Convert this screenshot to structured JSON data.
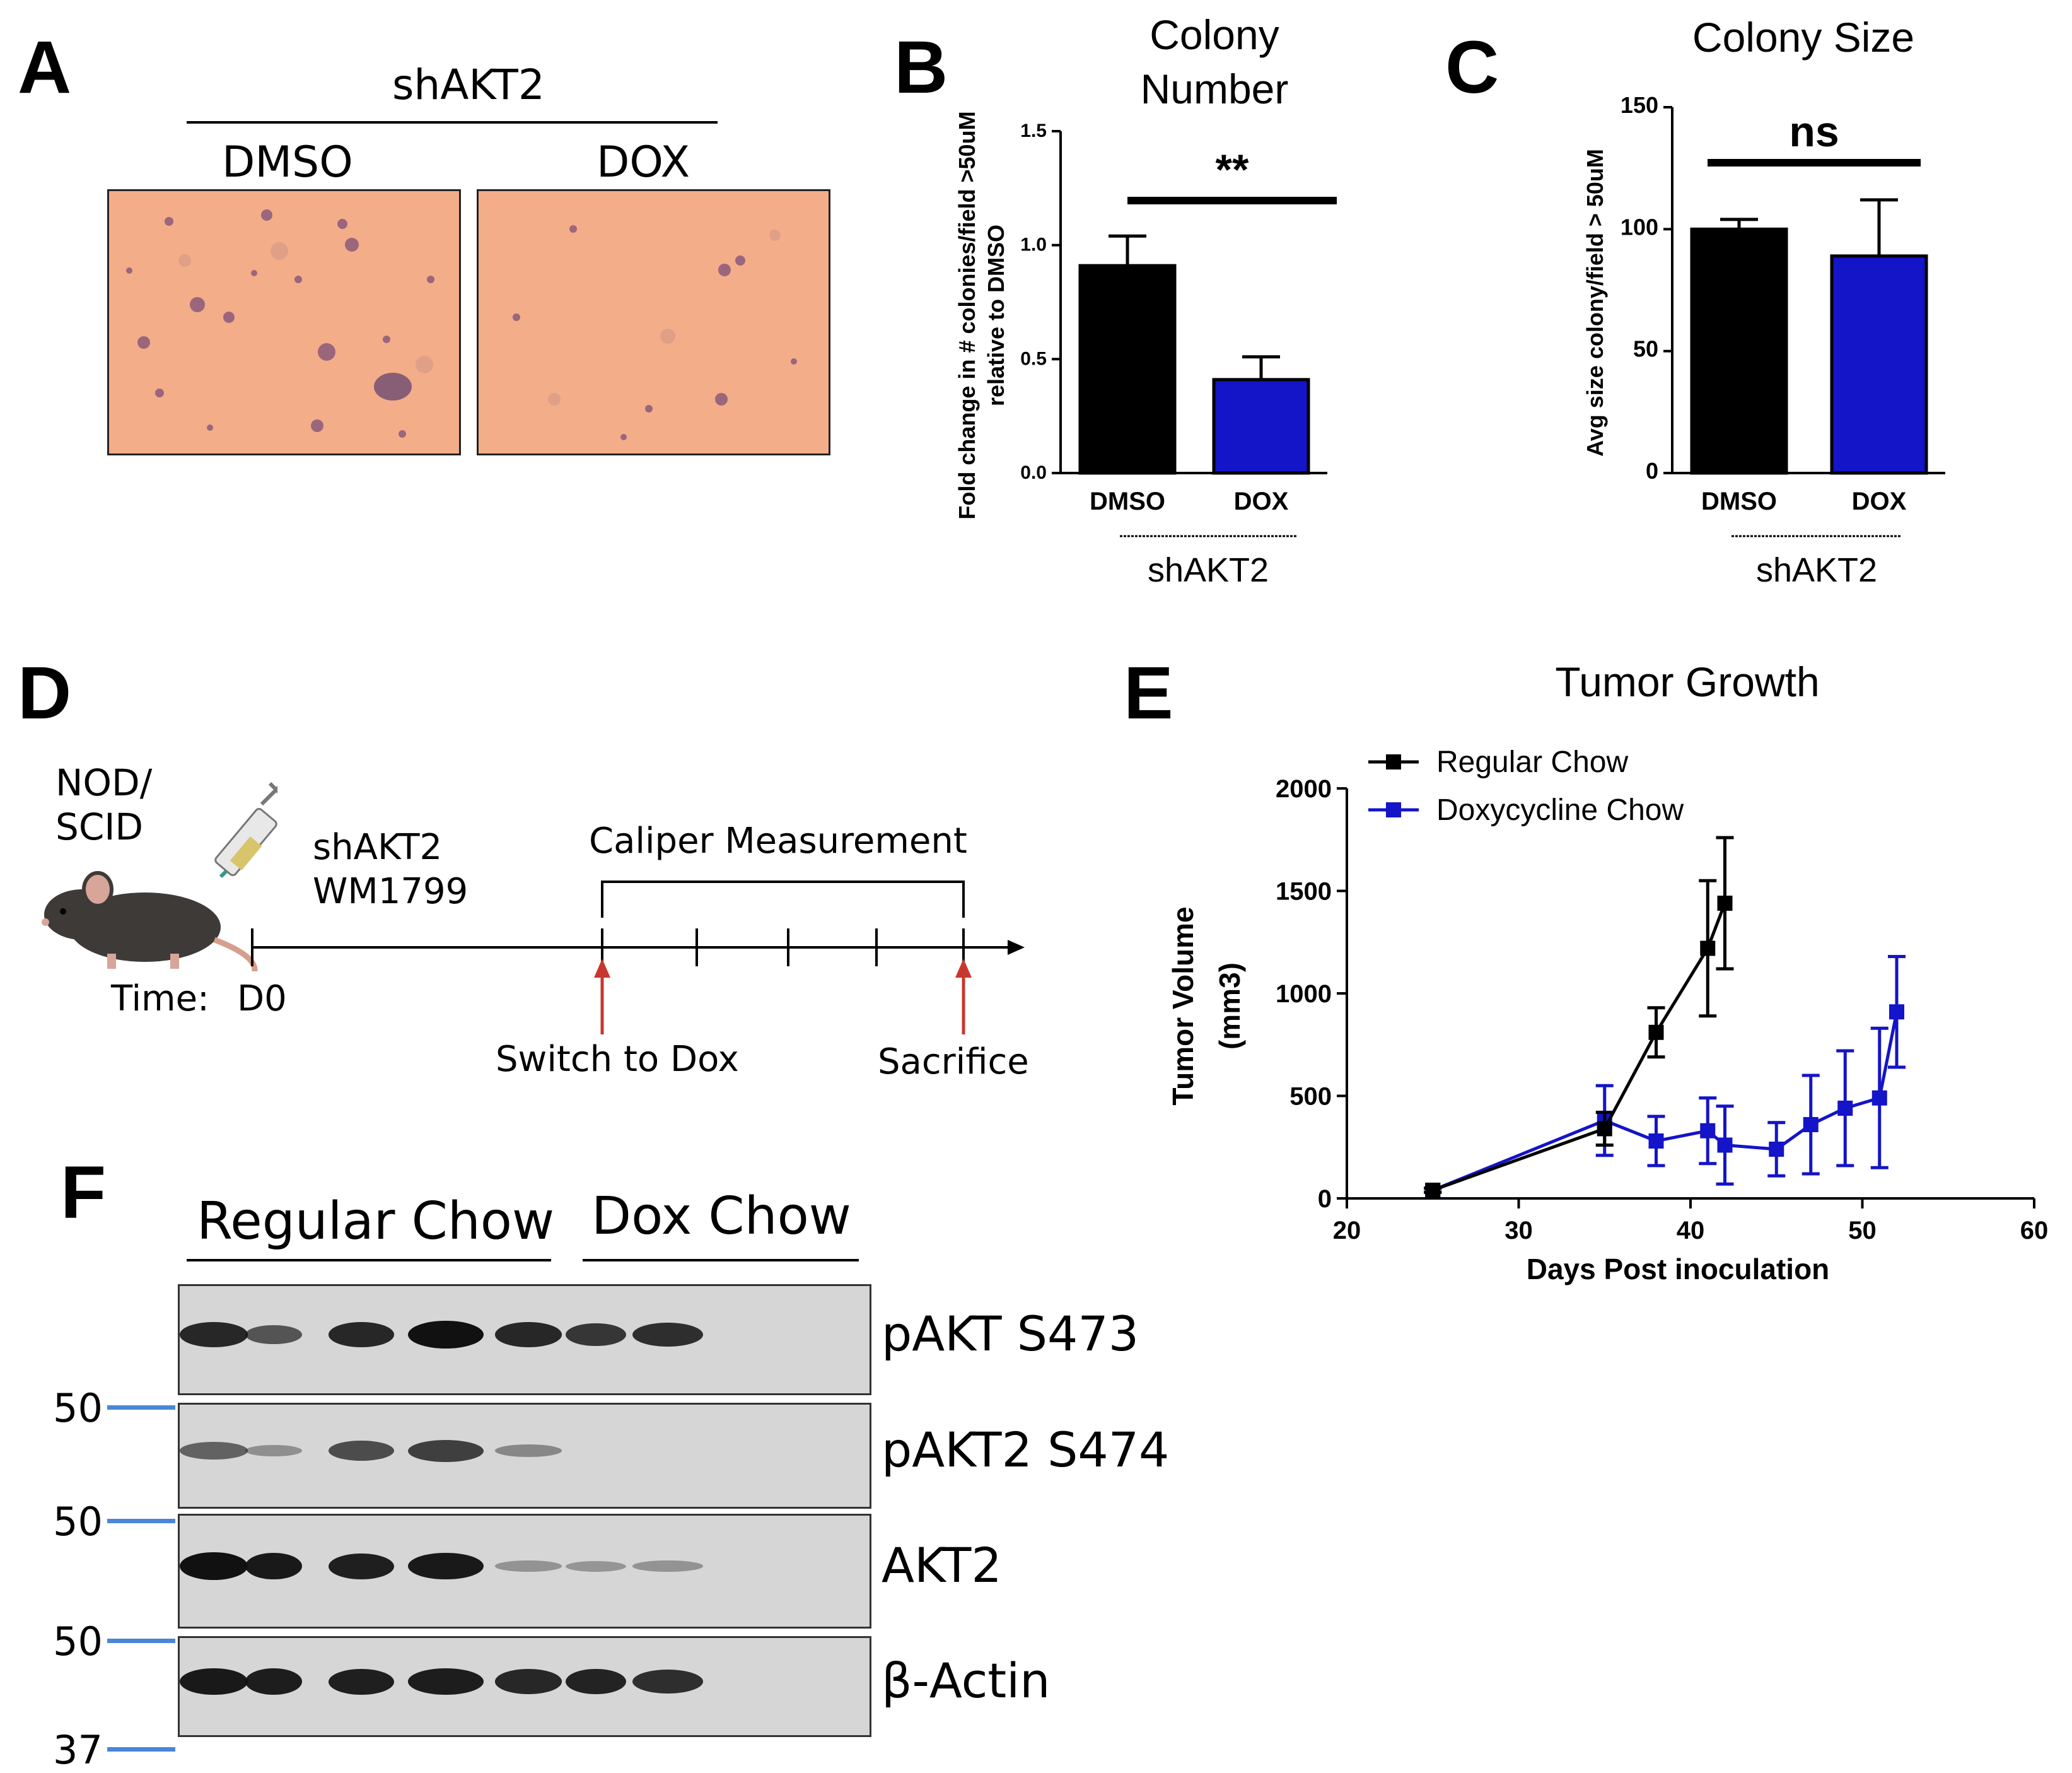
{
  "panels": {
    "A": {
      "letter": "A",
      "group": "shAKT2",
      "conditions": [
        "DMSO",
        "DOX"
      ]
    },
    "B": {
      "letter": "B"
    },
    "C": {
      "letter": "C"
    },
    "D": {
      "letter": "D",
      "mouse_label": [
        "NOD/",
        "SCID"
      ],
      "cell_label": [
        "shAKT2",
        "WM1799"
      ],
      "bracket_label": "Caliper Measurement",
      "time_label": "Time:",
      "day_label": "D0",
      "switch_label": "Switch to Dox",
      "sacrifice_label": "Sacrifice"
    },
    "E": {
      "letter": "E"
    },
    "F": {
      "letter": "F",
      "group_labels": [
        "Regular Chow",
        "Dox Chow"
      ],
      "blots": [
        {
          "label": "pAKT S473",
          "marker": "50",
          "intensities": [
            0.85,
            0.55,
            0.85,
            1.0,
            0.85,
            0.75,
            0.8
          ]
        },
        {
          "label": "pAKT2 S474",
          "marker": "50",
          "intensities": [
            0.45,
            0.15,
            0.6,
            0.7,
            0.2,
            0.0,
            0.0
          ]
        },
        {
          "label": "AKT2",
          "marker": "50",
          "intensities": [
            1.0,
            0.95,
            0.9,
            0.95,
            0.12,
            0.1,
            0.12
          ]
        },
        {
          "label": "β-Actin",
          "marker": "37",
          "intensities": [
            0.95,
            0.92,
            0.9,
            0.92,
            0.85,
            0.88,
            0.8
          ]
        }
      ]
    }
  },
  "chart_data": [
    {
      "id": "B",
      "type": "bar",
      "title": "Colony Number",
      "categories": [
        "DMSO",
        "DOX"
      ],
      "values": [
        0.91,
        0.41
      ],
      "errors": [
        0.13,
        0.1
      ],
      "colors": [
        "#000000",
        "#1414c8"
      ],
      "ylabel": "Fold change in # colonies/field >50uM relative to DMSO",
      "ylim": [
        0,
        1.5
      ],
      "yticks": [
        "0.0",
        "0.5",
        "1.0",
        "1.5"
      ],
      "group_label": "shAKT2",
      "significance": "**"
    },
    {
      "id": "C",
      "type": "bar",
      "title": "Colony Size",
      "categories": [
        "DMSO",
        "DOX"
      ],
      "values": [
        100,
        89
      ],
      "errors": [
        4,
        23
      ],
      "colors": [
        "#000000",
        "#1414c8"
      ],
      "ylabel": "Avg size colony/field > 50uM",
      "ylim": [
        0,
        150
      ],
      "yticks": [
        "0",
        "50",
        "100",
        "150"
      ],
      "group_label": "shAKT2",
      "significance": "ns"
    },
    {
      "id": "E",
      "type": "line",
      "title": "Tumor Growth",
      "xlabel": "Days Post inoculation",
      "ylabel": "Tumor  Volume",
      "ylabel_unit": "(mm3)",
      "xlim": [
        20,
        60
      ],
      "ylim": [
        0,
        2000
      ],
      "xticks": [
        "20",
        "30",
        "40",
        "50",
        "60"
      ],
      "yticks": [
        "0",
        "500",
        "1000",
        "1500",
        "2000"
      ],
      "series": [
        {
          "name": "Regular Chow",
          "color": "#000000",
          "x": [
            25,
            35,
            38,
            41,
            42
          ],
          "y": [
            40,
            340,
            810,
            1220,
            1440
          ],
          "err": [
            10,
            80,
            120,
            330,
            320
          ]
        },
        {
          "name": "Doxycycline Chow",
          "color": "#1414c8",
          "x": [
            25,
            35,
            38,
            41,
            42,
            45,
            47,
            49,
            51,
            52
          ],
          "y": [
            40,
            380,
            280,
            330,
            260,
            240,
            360,
            440,
            490,
            910
          ],
          "err": [
            10,
            170,
            120,
            160,
            190,
            130,
            240,
            280,
            340,
            270
          ]
        }
      ]
    }
  ]
}
